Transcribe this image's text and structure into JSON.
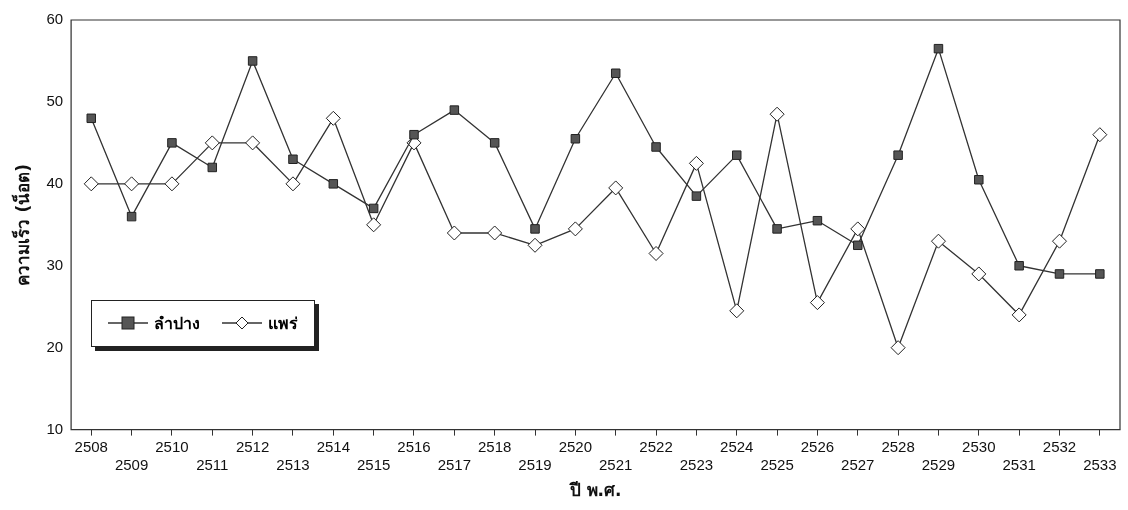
{
  "chart_data": {
    "type": "line",
    "xlabel": "ปี พ.ศ.",
    "ylabel": "ความเร็ว (น็อต)",
    "categories": [
      "2508",
      "2509",
      "2510",
      "2511",
      "2512",
      "2513",
      "2514",
      "2515",
      "2516",
      "2517",
      "2518",
      "2519",
      "2520",
      "2521",
      "2522",
      "2523",
      "2524",
      "2525",
      "2526",
      "2527",
      "2528",
      "2529",
      "2530",
      "2531",
      "2532",
      "2533"
    ],
    "series": [
      {
        "name": "ลำปาง",
        "color": "#555555",
        "marker": "square",
        "values": [
          48,
          36,
          45,
          42,
          55,
          43,
          40,
          37,
          46,
          49,
          45,
          34.5,
          45.5,
          53.5,
          44.5,
          38.5,
          43.5,
          34.5,
          35.5,
          32.5,
          43.5,
          56.5,
          40.5,
          30,
          29,
          29
        ]
      },
      {
        "name": "แพร่",
        "color": "#ffffff",
        "marker": "diamond",
        "values": [
          40,
          40,
          40,
          45,
          45,
          40,
          48,
          35,
          45,
          34,
          34,
          32.5,
          34.5,
          39.5,
          31.5,
          42.5,
          24.5,
          48.5,
          25.5,
          34.5,
          20,
          33,
          29,
          24,
          33,
          46
        ]
      }
    ],
    "ylim": [
      10,
      60
    ],
    "yticks": [
      10,
      20,
      30,
      40,
      50,
      60
    ],
    "grid": false,
    "legend": "bottom left",
    "line_style": "solid"
  }
}
